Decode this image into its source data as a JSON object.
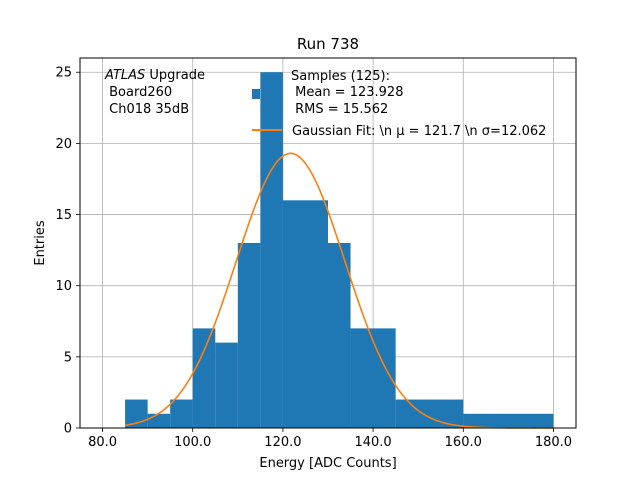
{
  "chart_data": {
    "type": "bar",
    "title": "Run 738",
    "xlabel": "Energy [ADC Counts]",
    "ylabel": "Entries",
    "xlim": [
      75,
      185
    ],
    "ylim": [
      0,
      26
    ],
    "grid": true,
    "x_ticks": [
      80,
      100,
      120,
      140,
      160,
      180
    ],
    "x_tick_labels": [
      "80.0",
      "100.0",
      "120.0",
      "140.0",
      "160.0",
      "180.0"
    ],
    "y_ticks": [
      0,
      5,
      10,
      15,
      20,
      25
    ],
    "y_tick_labels": [
      "0",
      "5",
      "10",
      "15",
      "20",
      "25"
    ],
    "histogram": {
      "color": "#1f77b4",
      "bins": [
        {
          "x0": 85,
          "x1": 90,
          "count": 2
        },
        {
          "x0": 90,
          "x1": 95,
          "count": 1
        },
        {
          "x0": 95,
          "x1": 100,
          "count": 2
        },
        {
          "x0": 100,
          "x1": 105,
          "count": 7
        },
        {
          "x0": 105,
          "x1": 110,
          "count": 6
        },
        {
          "x0": 110,
          "x1": 115,
          "count": 13
        },
        {
          "x0": 115,
          "x1": 120,
          "count": 25
        },
        {
          "x0": 120,
          "x1": 130,
          "count": 16
        },
        {
          "x0": 130,
          "x1": 135,
          "count": 13
        },
        {
          "x0": 135,
          "x1": 145,
          "count": 7
        },
        {
          "x0": 145,
          "x1": 160,
          "count": 2
        },
        {
          "x0": 160,
          "x1": 180,
          "count": 1
        }
      ]
    },
    "fit": {
      "color": "#ff7f0e",
      "mu": 121.7,
      "sigma": 12.062,
      "amplitude": 19.3,
      "x_range": [
        85,
        180
      ]
    },
    "legend": {
      "placement": "top-right",
      "samples_line1": "Samples (125):",
      "samples_line2": " Mean = 123.928",
      "samples_line3": " RMS = 15.562",
      "fit_label": "Gaussian Fit: \\n μ = 121.7 \\n σ=12.062"
    },
    "annotation": {
      "line1_italic": "ATLAS",
      "line1_rest": " Upgrade",
      "line2": " Board260",
      "line3": " Ch018 35dB"
    }
  }
}
